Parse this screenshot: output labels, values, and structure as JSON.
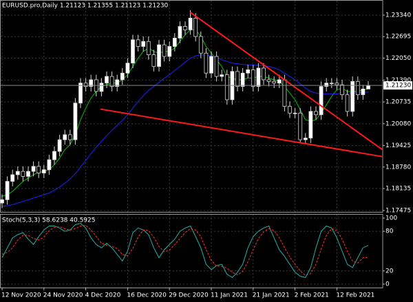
{
  "chart_data": [
    {
      "type": "candlestick",
      "title": "EURUSD.pro,Daily  1.21123 1.21355 1.21123 1.21230",
      "categories": [
        "12 Nov 2020",
        null,
        null,
        null,
        null,
        null,
        null,
        null,
        "24 Nov 2020",
        null,
        null,
        null,
        null,
        null,
        null,
        null,
        "4 Dec 2020",
        null,
        null,
        null,
        null,
        null,
        null,
        null,
        "16 Dec 2020",
        null,
        null,
        null,
        null,
        null,
        null,
        null,
        "29 Dec 2020",
        null,
        null,
        null,
        null,
        null,
        null,
        null,
        "11 Jan 2021",
        null,
        null,
        null,
        null,
        null,
        null,
        null,
        "21 Jan 2021",
        null,
        null,
        null,
        null,
        null,
        null,
        null,
        "2 Feb 2021",
        null,
        null,
        null,
        null,
        null,
        null,
        null,
        "12 Feb 2021",
        null,
        null,
        null,
        null,
        null,
        null
      ],
      "open": [
        1.177,
        1.178,
        1.1835,
        1.1855,
        1.1865,
        1.185,
        1.1865,
        1.188,
        1.186,
        1.187,
        1.19,
        1.1925,
        1.196,
        1.1975,
        1.196,
        1.207,
        1.213,
        1.212,
        1.214,
        1.2105,
        1.213,
        1.215,
        1.212,
        1.214,
        1.216,
        1.219,
        1.226,
        1.224,
        1.2255,
        1.2215,
        1.218,
        1.2245,
        1.221,
        1.224,
        1.2265,
        1.23,
        1.229,
        1.2325,
        1.227,
        1.222,
        1.216,
        1.221,
        1.215,
        1.2155,
        1.208,
        1.2165,
        1.212,
        1.216,
        1.217,
        1.212,
        1.2175,
        1.214,
        1.2135,
        1.213,
        1.214,
        1.206,
        1.204,
        1.204,
        1.196,
        1.1965,
        1.2045,
        1.2035,
        1.212,
        1.213,
        1.213,
        1.2125,
        1.2095,
        1.2045,
        1.2135,
        1.2095,
        1.21123
      ],
      "high": [
        1.1795,
        1.185,
        1.187,
        1.188,
        1.188,
        1.188,
        1.1895,
        1.1895,
        1.1885,
        1.1915,
        1.194,
        1.1975,
        1.199,
        1.199,
        1.2085,
        1.2145,
        1.2145,
        1.2155,
        1.2155,
        1.2145,
        1.2165,
        1.2165,
        1.2155,
        1.2175,
        1.2205,
        1.2275,
        1.2275,
        1.227,
        1.227,
        1.223,
        1.226,
        1.226,
        1.2255,
        1.228,
        1.2315,
        1.2315,
        1.2349,
        1.234,
        1.2285,
        1.2235,
        1.2225,
        1.2225,
        1.217,
        1.217,
        1.218,
        1.218,
        1.2175,
        1.2185,
        1.2185,
        1.219,
        1.219,
        1.2155,
        1.215,
        1.2155,
        1.2155,
        1.2075,
        1.2055,
        1.2055,
        1.198,
        1.206,
        1.206,
        1.2135,
        1.2145,
        1.2145,
        1.2145,
        1.214,
        1.211,
        1.215,
        1.215,
        1.2125,
        1.21355
      ],
      "low": [
        1.1755,
        1.1765,
        1.182,
        1.184,
        1.1835,
        1.1835,
        1.185,
        1.1845,
        1.1845,
        1.1855,
        1.1885,
        1.191,
        1.1945,
        1.1945,
        1.1945,
        1.2055,
        1.2105,
        1.2105,
        1.209,
        1.209,
        1.2115,
        1.2105,
        1.2105,
        1.2125,
        1.2145,
        1.2175,
        1.2225,
        1.2225,
        1.22,
        1.2165,
        1.2165,
        1.2195,
        1.2195,
        1.2225,
        1.225,
        1.2275,
        1.2275,
        1.2255,
        1.2205,
        1.2145,
        1.2145,
        1.2135,
        1.2135,
        1.2065,
        1.2065,
        1.2105,
        1.2105,
        1.2145,
        1.2105,
        1.2105,
        1.2125,
        1.212,
        1.2115,
        1.2115,
        1.2045,
        1.2025,
        1.2025,
        1.195,
        1.195,
        1.195,
        1.202,
        1.202,
        1.2105,
        1.2115,
        1.211,
        1.208,
        1.203,
        1.203,
        1.208,
        1.208,
        1.21123
      ],
      "close": [
        1.178,
        1.1835,
        1.1855,
        1.1865,
        1.185,
        1.1865,
        1.188,
        1.186,
        1.187,
        1.19,
        1.1925,
        1.196,
        1.1975,
        1.196,
        1.207,
        1.213,
        1.212,
        1.214,
        1.2105,
        1.213,
        1.215,
        1.212,
        1.214,
        1.216,
        1.219,
        1.226,
        1.224,
        1.2255,
        1.2215,
        1.218,
        1.2245,
        1.221,
        1.224,
        1.2265,
        1.23,
        1.229,
        1.2325,
        1.227,
        1.222,
        1.216,
        1.221,
        1.215,
        1.2155,
        1.208,
        1.2165,
        1.212,
        1.216,
        1.217,
        1.212,
        1.2175,
        1.214,
        1.2135,
        1.213,
        1.214,
        1.206,
        1.204,
        1.204,
        1.196,
        1.1965,
        1.2045,
        1.2035,
        1.212,
        1.213,
        1.213,
        1.2125,
        1.2095,
        1.2045,
        1.2135,
        1.2095,
        1.21123,
        1.2123
      ],
      "up_color": "#ffffff",
      "down_color": "#000000",
      "wick_color": "#d8d8d8",
      "lines": [
        {
          "color": "#00c000",
          "values": [
            1.179,
            1.1795,
            1.1805,
            1.182,
            1.1835,
            1.1845,
            1.1855,
            1.1862,
            1.1865,
            1.187,
            1.1885,
            1.1905,
            1.193,
            1.1945,
            1.1975,
            1.202,
            1.2055,
            1.2085,
            1.2105,
            1.212,
            1.2125,
            1.213,
            1.213,
            1.214,
            1.2155,
            1.218,
            1.2205,
            1.2225,
            1.2235,
            1.2225,
            1.222,
            1.2225,
            1.2225,
            1.2235,
            1.2255,
            1.2275,
            1.229,
            1.229,
            1.227,
            1.224,
            1.222,
            1.22,
            1.218,
            1.215,
            1.2145,
            1.214,
            1.214,
            1.2145,
            1.2145,
            1.215,
            1.215,
            1.2145,
            1.214,
            1.2135,
            1.212,
            1.21,
            1.208,
            1.205,
            1.202,
            1.2015,
            1.202,
            1.204,
            1.2065,
            1.209,
            1.211,
            1.2115,
            1.2105,
            1.2105,
            1.2105,
            1.211,
            1.2112
          ]
        },
        {
          "color": "#2020ff",
          "values": [
            1.176,
            1.1762,
            1.1765,
            1.177,
            1.1775,
            1.178,
            1.1785,
            1.179,
            1.1795,
            1.18,
            1.1808,
            1.1818,
            1.183,
            1.1842,
            1.1858,
            1.1878,
            1.1898,
            1.1918,
            1.1938,
            1.1955,
            1.1972,
            1.1988,
            1.2003,
            1.2018,
            1.2035,
            1.2055,
            1.2075,
            1.2092,
            1.2108,
            1.212,
            1.2132,
            1.2145,
            1.2155,
            1.2168,
            1.218,
            1.2193,
            1.2205,
            1.2212,
            1.2215,
            1.2214,
            1.2212,
            1.2208,
            1.22,
            1.2195,
            1.219,
            1.2188,
            1.2186,
            1.2185,
            1.2184,
            1.2183,
            1.2182,
            1.218,
            1.2176,
            1.217,
            1.216,
            1.215,
            1.214,
            1.2128,
            1.2115,
            1.2105,
            1.21,
            1.2098,
            1.2097,
            1.2097,
            1.2098,
            1.2099,
            1.21,
            1.21,
            1.2101,
            1.2102,
            1.2103
          ]
        }
      ],
      "trendlines": [
        {
          "color": "#ff1a1a",
          "x": [
            36,
            72.8
          ],
          "y": [
            1.2342,
            1.1929
          ]
        },
        {
          "color": "#ff1a1a",
          "x": [
            18.8,
            72.8
          ],
          "y": [
            1.2052,
            1.1909
          ]
        }
      ],
      "bid": {
        "value": 1.2123,
        "label": "1.21230"
      },
      "ylim": [
        1.17434,
        1.23794
      ],
      "yticks": [
        {
          "value": 1.2334,
          "label": "1.23340"
        },
        {
          "value": 1.22695,
          "label": "1.22695"
        },
        {
          "value": 1.2205,
          "label": "1.22050"
        },
        {
          "value": 1.2139,
          "label": "1.21390"
        },
        {
          "value": 1.20735,
          "label": "1.20735"
        },
        {
          "value": 1.2008,
          "label": "1.20080"
        },
        {
          "value": 1.19425,
          "label": "1.19425"
        },
        {
          "value": 1.1878,
          "label": "1.18780"
        },
        {
          "value": 1.18135,
          "label": "1.18135"
        },
        {
          "value": 1.17475,
          "label": "1.17475"
        }
      ],
      "grid": true
    },
    {
      "type": "line",
      "title": "Stoch(5,3,3) 58.6238 40.5925",
      "series": [
        {
          "color": "#20b2aa",
          "dashed": false,
          "values": [
            40,
            55,
            70,
            75,
            78,
            68,
            60,
            72,
            82,
            88,
            88,
            85,
            80,
            82,
            90,
            92,
            85,
            70,
            60,
            55,
            62,
            55,
            45,
            35,
            50,
            78,
            85,
            82,
            75,
            55,
            40,
            52,
            60,
            68,
            80,
            85,
            88,
            72,
            55,
            30,
            22,
            28,
            30,
            15,
            10,
            18,
            30,
            55,
            72,
            80,
            85,
            88,
            70,
            52,
            42,
            30,
            18,
            12,
            10,
            25,
            55,
            80,
            88,
            85,
            70,
            50,
            30,
            25,
            40,
            55,
            58.6238
          ]
        },
        {
          "color": "#ff3030",
          "dashed": true,
          "values": [
            45,
            48,
            55,
            67,
            74,
            74,
            69,
            67,
            71,
            81,
            86,
            87,
            84,
            82,
            84,
            88,
            89,
            82,
            72,
            62,
            59,
            57,
            54,
            45,
            43,
            54,
            71,
            82,
            81,
            71,
            57,
            49,
            51,
            60,
            69,
            78,
            84,
            82,
            72,
            52,
            36,
            27,
            27,
            24,
            18,
            14,
            19,
            34,
            52,
            69,
            79,
            84,
            81,
            70,
            55,
            41,
            30,
            20,
            13,
            16,
            30,
            53,
            74,
            84,
            81,
            68,
            50,
            35,
            32,
            40,
            40.5925
          ]
        }
      ],
      "ylim": [
        -5.2,
        105.2
      ],
      "yticks": [
        100,
        80,
        20,
        0
      ],
      "grid": true
    }
  ]
}
